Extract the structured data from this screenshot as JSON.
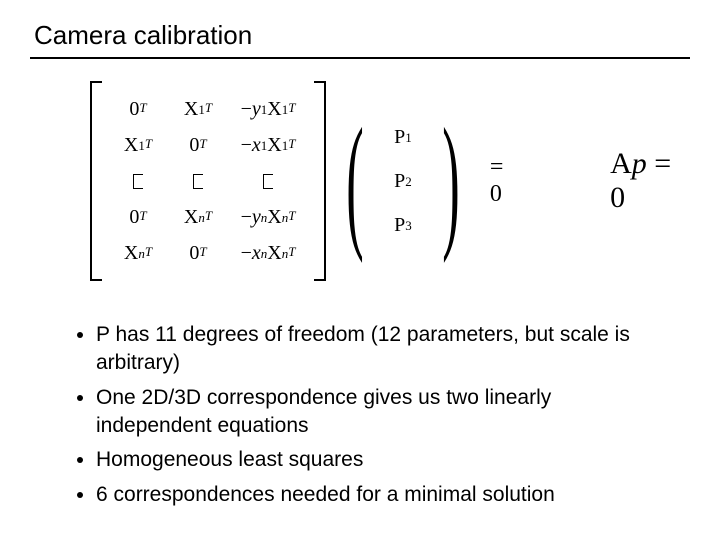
{
  "title": "Camera calibration",
  "matrix": {
    "rows": [
      [
        "0<span class='sup ital'>T</span>",
        "X<span class='sub'>1</span><span class='sup ital'>T</span>",
        "−<span class='ital'>y</span><span class='sub'>1</span>X<span class='sub'>1</span><span class='sup ital'>T</span>"
      ],
      [
        "X<span class='sub'>1</span><span class='sup ital'>T</span>",
        "0<span class='sup ital'>T</span>",
        "−<span class='ital'>x</span><span class='sub'>1</span>X<span class='sub'>1</span><span class='sup ital'>T</span>"
      ],
      [
        "RECT",
        "RECT",
        "RECT"
      ],
      [
        "0<span class='sup ital'>T</span>",
        "X<span class='sub ital'>n</span><span class='sup ital'>T</span>",
        "−<span class='ital'>y</span><span class='sub ital'>n</span>X<span class='sub ital'>n</span><span class='sup ital'>T</span>"
      ],
      [
        "X<span class='sub ital'>n</span><span class='sup ital'>T</span>",
        "0<span class='sup ital'>T</span>",
        "−<span class='ital'>x</span><span class='sub ital'>n</span>X<span class='sub ital'>n</span><span class='sup ital'>T</span>"
      ]
    ]
  },
  "vector": [
    "P<span class='sub'>1</span>",
    "P<span class='sub'>2</span>",
    "P<span class='sub'>3</span>"
  ],
  "eq_zero": "= 0",
  "side_equation": "A<span class='ital'>p</span> = 0",
  "bullets": [
    "P has 11 degrees of freedom (12 parameters, but scale is arbitrary)",
    "One 2D/3D correspondence gives us two linearly independent equations",
    "Homogeneous least squares",
    "6 correspondences needed for a minimal solution"
  ],
  "colors": {
    "text": "#000000",
    "background": "#ffffff",
    "rule": "#000000"
  },
  "fontsize": {
    "title": 26,
    "body": 21,
    "math": 20,
    "side_eq": 30
  }
}
